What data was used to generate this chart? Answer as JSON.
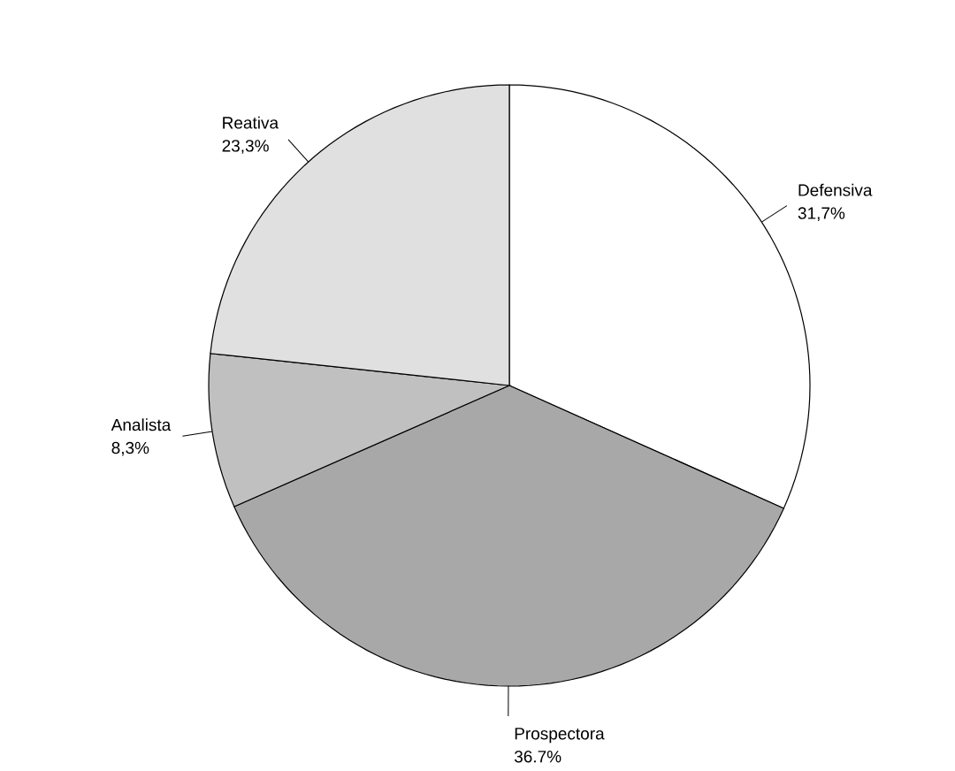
{
  "chart_data": {
    "type": "pie",
    "categories": [
      "Defensiva",
      "Prospectora",
      "Analista",
      "Reativa"
    ],
    "values": [
      31.7,
      36.7,
      8.3,
      23.3
    ],
    "value_labels": [
      "31,7%",
      "36.7%",
      "8,3%",
      "23,3%"
    ],
    "colors": [
      "#ffffff",
      "#a8a8a8",
      "#c0c0c0",
      "#e0e0e0"
    ]
  }
}
